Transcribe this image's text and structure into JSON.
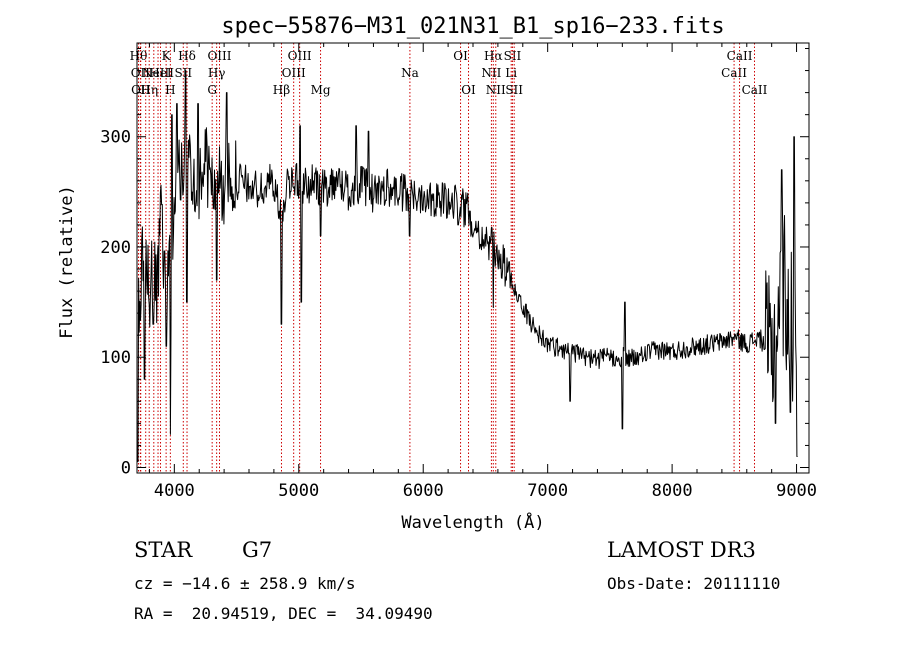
{
  "chart_data": {
    "type": "line",
    "title": "spec−55876−M31_021N31_B1_sp16−233.fits",
    "xlabel": "Wavelength (Å)",
    "ylabel": "Flux (relative)",
    "xlim": [
      3700,
      9100
    ],
    "ylim": [
      -5,
      385
    ],
    "xticks": [
      4000,
      5000,
      6000,
      7000,
      8000,
      9000
    ],
    "xtick_labels": [
      "4000",
      "5000",
      "6000",
      "7000",
      "8000",
      "9000"
    ],
    "yticks": [
      0,
      100,
      200,
      300
    ],
    "ytick_labels": [
      "0",
      "100",
      "200",
      "300"
    ],
    "series": [
      {
        "name": "flux",
        "anchors": [
          [
            3700,
            160
          ],
          [
            3720,
            120
          ],
          [
            3740,
            190
          ],
          [
            3760,
            130
          ],
          [
            3780,
            200
          ],
          [
            3800,
            150
          ],
          [
            3830,
            180
          ],
          [
            3860,
            150
          ],
          [
            3880,
            200
          ],
          [
            3900,
            230
          ],
          [
            3930,
            160
          ],
          [
            3960,
            200
          ],
          [
            3980,
            110
          ],
          [
            4000,
            250
          ],
          [
            4030,
            280
          ],
          [
            4060,
            260
          ],
          [
            4100,
            290
          ],
          [
            4150,
            270
          ],
          [
            4200,
            260
          ],
          [
            4250,
            280
          ],
          [
            4300,
            250
          ],
          [
            4350,
            265
          ],
          [
            4400,
            250
          ],
          [
            4450,
            270
          ],
          [
            4500,
            260
          ],
          [
            4600,
            255
          ],
          [
            4700,
            250
          ],
          [
            4800,
            262
          ],
          [
            4860,
            220
          ],
          [
            4900,
            258
          ],
          [
            4950,
            265
          ],
          [
            5000,
            255
          ],
          [
            5100,
            258
          ],
          [
            5200,
            252
          ],
          [
            5300,
            262
          ],
          [
            5400,
            250
          ],
          [
            5500,
            258
          ],
          [
            5600,
            248
          ],
          [
            5700,
            255
          ],
          [
            5800,
            250
          ],
          [
            5900,
            245
          ],
          [
            6000,
            248
          ],
          [
            6100,
            245
          ],
          [
            6200,
            240
          ],
          [
            6300,
            240
          ],
          [
            6400,
            225
          ],
          [
            6500,
            205
          ],
          [
            6600,
            195
          ],
          [
            6700,
            170
          ],
          [
            6750,
            160
          ],
          [
            6800,
            145
          ],
          [
            6900,
            125
          ],
          [
            7000,
            112
          ],
          [
            7100,
            108
          ],
          [
            7200,
            105
          ],
          [
            7300,
            100
          ],
          [
            7400,
            98
          ],
          [
            7500,
            100
          ],
          [
            7600,
            100
          ],
          [
            7700,
            98
          ],
          [
            7800,
            104
          ],
          [
            7900,
            107
          ],
          [
            8000,
            105
          ],
          [
            8100,
            108
          ],
          [
            8200,
            110
          ],
          [
            8300,
            112
          ],
          [
            8400,
            114
          ],
          [
            8500,
            118
          ],
          [
            8600,
            112
          ],
          [
            8700,
            118
          ],
          [
            8750,
            110
          ],
          [
            8800,
            100
          ],
          [
            8850,
            140
          ],
          [
            8900,
            170
          ],
          [
            8950,
            130
          ],
          [
            9000,
            120
          ]
        ],
        "dips": [
          [
            3705,
            5
          ],
          [
            3760,
            80
          ],
          [
            3830,
            130
          ],
          [
            3934,
            110
          ],
          [
            3968,
            30
          ],
          [
            4101,
            150
          ],
          [
            4340,
            170
          ],
          [
            4860,
            130
          ],
          [
            5020,
            150
          ],
          [
            5175,
            210
          ],
          [
            5890,
            210
          ],
          [
            6280,
            220
          ],
          [
            6563,
            145
          ],
          [
            7180,
            60
          ],
          [
            7600,
            35
          ],
          [
            8830,
            40
          ],
          [
            8950,
            50
          ],
          [
            9005,
            10
          ]
        ],
        "spikes": [
          [
            3980,
            320
          ],
          [
            4020,
            330
          ],
          [
            4090,
            360
          ],
          [
            4190,
            330
          ],
          [
            4420,
            340
          ],
          [
            5010,
            310
          ],
          [
            5460,
            310
          ],
          [
            5560,
            305
          ],
          [
            7620,
            150
          ],
          [
            8880,
            270
          ],
          [
            8980,
            300
          ]
        ]
      }
    ],
    "spectral_lines": [
      {
        "w": 3712,
        "label": "Hθ",
        "row": 0
      },
      {
        "w": 3727,
        "label": "OII",
        "row": 1
      },
      {
        "w": 3730,
        "label": "OII",
        "row": 2
      },
      {
        "w": 3770,
        "label": "",
        "row": -1
      },
      {
        "w": 3798,
        "label": "Hη",
        "row": 2
      },
      {
        "w": 3835,
        "label": "",
        "row": -1
      },
      {
        "w": 3869,
        "label": "NeIII",
        "row": 1
      },
      {
        "w": 3889,
        "label": "HeI",
        "row": 1
      },
      {
        "w": 3934,
        "label": "K",
        "row": 0
      },
      {
        "w": 3968,
        "label": "H",
        "row": 2
      },
      {
        "w": 4072,
        "label": "SII",
        "row": 1
      },
      {
        "w": 4102,
        "label": "Hδ",
        "row": 0
      },
      {
        "w": 4304,
        "label": "G",
        "row": 2
      },
      {
        "w": 4340,
        "label": "Hγ",
        "row": 1
      },
      {
        "w": 4363,
        "label": "OIII",
        "row": 0
      },
      {
        "w": 4861,
        "label": "Hβ",
        "row": 2
      },
      {
        "w": 4959,
        "label": "OIII",
        "row": 1
      },
      {
        "w": 5007,
        "label": "OIII",
        "row": 0
      },
      {
        "w": 5175,
        "label": "Mg",
        "row": 2
      },
      {
        "w": 5893,
        "label": "Na",
        "row": 1
      },
      {
        "w": 6300,
        "label": "OI",
        "row": 0
      },
      {
        "w": 6364,
        "label": "OI",
        "row": 2
      },
      {
        "w": 6548,
        "label": "NII",
        "row": 1
      },
      {
        "w": 6563,
        "label": "Hα",
        "row": 0
      },
      {
        "w": 6583,
        "label": "NII",
        "row": 2
      },
      {
        "w": 6707,
        "label": "Li",
        "row": 1
      },
      {
        "w": 6717,
        "label": "SII",
        "row": 0
      },
      {
        "w": 6731,
        "label": "SII",
        "row": 2
      },
      {
        "w": 8498,
        "label": "CaII",
        "row": 1
      },
      {
        "w": 8542,
        "label": "CaII",
        "row": 0
      },
      {
        "w": 8662,
        "label": "CaII",
        "row": 2
      }
    ],
    "line_color": "#000000",
    "marker_color": "#cc0000"
  },
  "info": {
    "class": "STAR",
    "subclass": "G7",
    "survey": "LAMOST DR3",
    "cz": "cz = −14.6 ± 258.9 km/s",
    "obs_date": "Obs-Date: 20111110",
    "coords": "RA =  20.94519, DEC =  34.09490"
  }
}
